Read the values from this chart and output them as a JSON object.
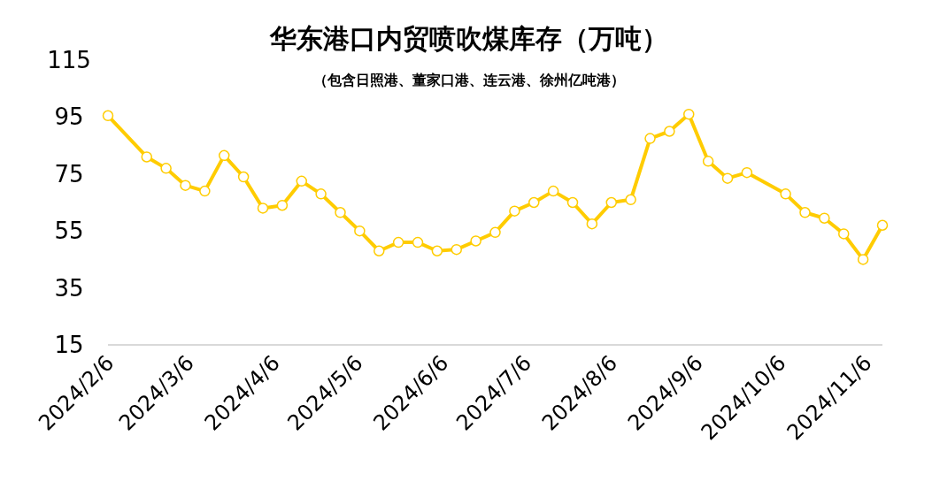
{
  "chart_data": {
    "type": "line",
    "title": "华东港口内贸喷吹煤库存（万吨）",
    "subtitle": "（包含日照港、董家口港、连云港、徐州亿吨港）",
    "x": [
      "2024-02-06",
      "2024-02-20",
      "2024-02-27",
      "2024-03-05",
      "2024-03-12",
      "2024-03-19",
      "2024-03-26",
      "2024-04-02",
      "2024-04-09",
      "2024-04-16",
      "2024-04-23",
      "2024-04-30",
      "2024-05-07",
      "2024-05-14",
      "2024-05-21",
      "2024-05-28",
      "2024-06-04",
      "2024-06-11",
      "2024-06-18",
      "2024-06-25",
      "2024-07-02",
      "2024-07-09",
      "2024-07-16",
      "2024-07-23",
      "2024-07-30",
      "2024-08-06",
      "2024-08-13",
      "2024-08-20",
      "2024-08-27",
      "2024-09-03",
      "2024-09-10",
      "2024-09-17",
      "2024-09-24",
      "2024-10-08",
      "2024-10-15",
      "2024-10-22",
      "2024-10-29",
      "2024-11-05",
      "2024-11-12"
    ],
    "series": [
      {
        "color": "#ffcc00",
        "values": [
          95.5,
          81,
          77,
          71,
          69,
          81.5,
          74,
          63,
          64,
          72.5,
          68,
          61.5,
          55,
          48,
          51,
          51,
          48,
          48.5,
          51.5,
          54.5,
          62,
          65,
          69,
          65,
          57.5,
          65,
          66,
          87.5,
          90,
          96,
          79.5,
          73.5,
          75.5,
          68,
          61.5,
          59.5,
          54,
          45,
          57
        ]
      }
    ],
    "xlim": [
      "2024-02-06",
      "2024-11-12"
    ],
    "ylim": [
      15,
      115
    ],
    "yticks": [
      15,
      35,
      55,
      75,
      95,
      115
    ],
    "xticks": [
      {
        "value": "2024-02-06",
        "label": "2024/2/6"
      },
      {
        "value": "2024-03-06",
        "label": "2024/3/6"
      },
      {
        "value": "2024-04-06",
        "label": "2024/4/6"
      },
      {
        "value": "2024-05-06",
        "label": "2024/5/6"
      },
      {
        "value": "2024-06-06",
        "label": "2024/6/6"
      },
      {
        "value": "2024-07-06",
        "label": "2024/7/6"
      },
      {
        "value": "2024-08-06",
        "label": "2024/8/6"
      },
      {
        "value": "2024-09-06",
        "label": "2024/9/6"
      },
      {
        "value": "2024-10-06",
        "label": "2024/10/6"
      },
      {
        "value": "2024-11-06",
        "label": "2024/11/6"
      }
    ],
    "grid": false,
    "marker": "circle",
    "line_style": "solid"
  }
}
